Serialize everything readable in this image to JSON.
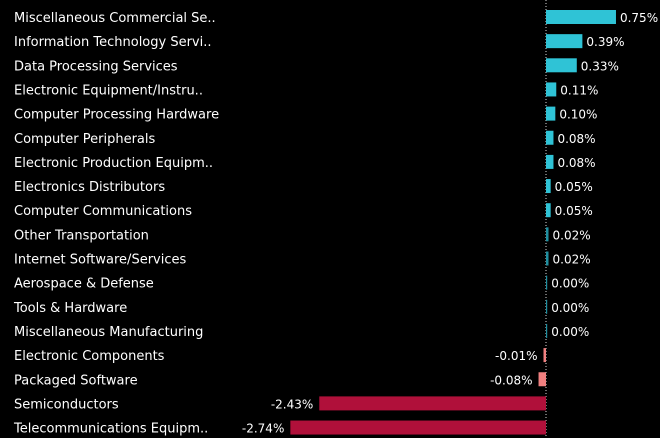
{
  "chart_data": {
    "type": "bar",
    "orientation": "horizontal",
    "categories": [
      "Miscellaneous Commercial Se..",
      "Information Technology Servi..",
      "Data Processing Services",
      "Electronic Equipment/Instru..",
      "Computer Processing Hardware",
      "Computer Peripherals",
      "Electronic Production Equipm..",
      "Electronics Distributors",
      "Computer Communications",
      "Other Transportation",
      "Internet Software/Services",
      "Aerospace & Defense",
      "Tools & Hardware",
      "Miscellaneous Manufacturing",
      "Electronic Components",
      "Packaged Software",
      "Semiconductors",
      "Telecommunications Equipm.."
    ],
    "values": [
      0.75,
      0.39,
      0.33,
      0.11,
      0.1,
      0.08,
      0.08,
      0.05,
      0.05,
      0.02,
      0.02,
      0.0,
      0.0,
      0.0,
      -0.01,
      -0.08,
      -2.43,
      -2.74
    ],
    "value_labels": [
      "0.75%",
      "0.39%",
      "0.33%",
      "0.11%",
      "0.10%",
      "0.08%",
      "0.08%",
      "0.05%",
      "0.05%",
      "0.02%",
      "0.02%",
      "0.00%",
      "0.00%",
      "0.00%",
      "-0.01%",
      "-0.08%",
      "-2.43%",
      "-2.74%"
    ],
    "title": "",
    "xlabel": "",
    "ylabel": "",
    "xlim": [
      -3.09,
      0.75
    ],
    "grid": false,
    "legend": "none",
    "colors": {
      "background": "#000000",
      "positive_strong": "#2fc3d6",
      "positive_weak": "#1f8fa0",
      "negative_weak": "#f08080",
      "negative_strong": "#b0103a",
      "zero_line": "#d8d8d8",
      "text": "#ffffff"
    }
  }
}
